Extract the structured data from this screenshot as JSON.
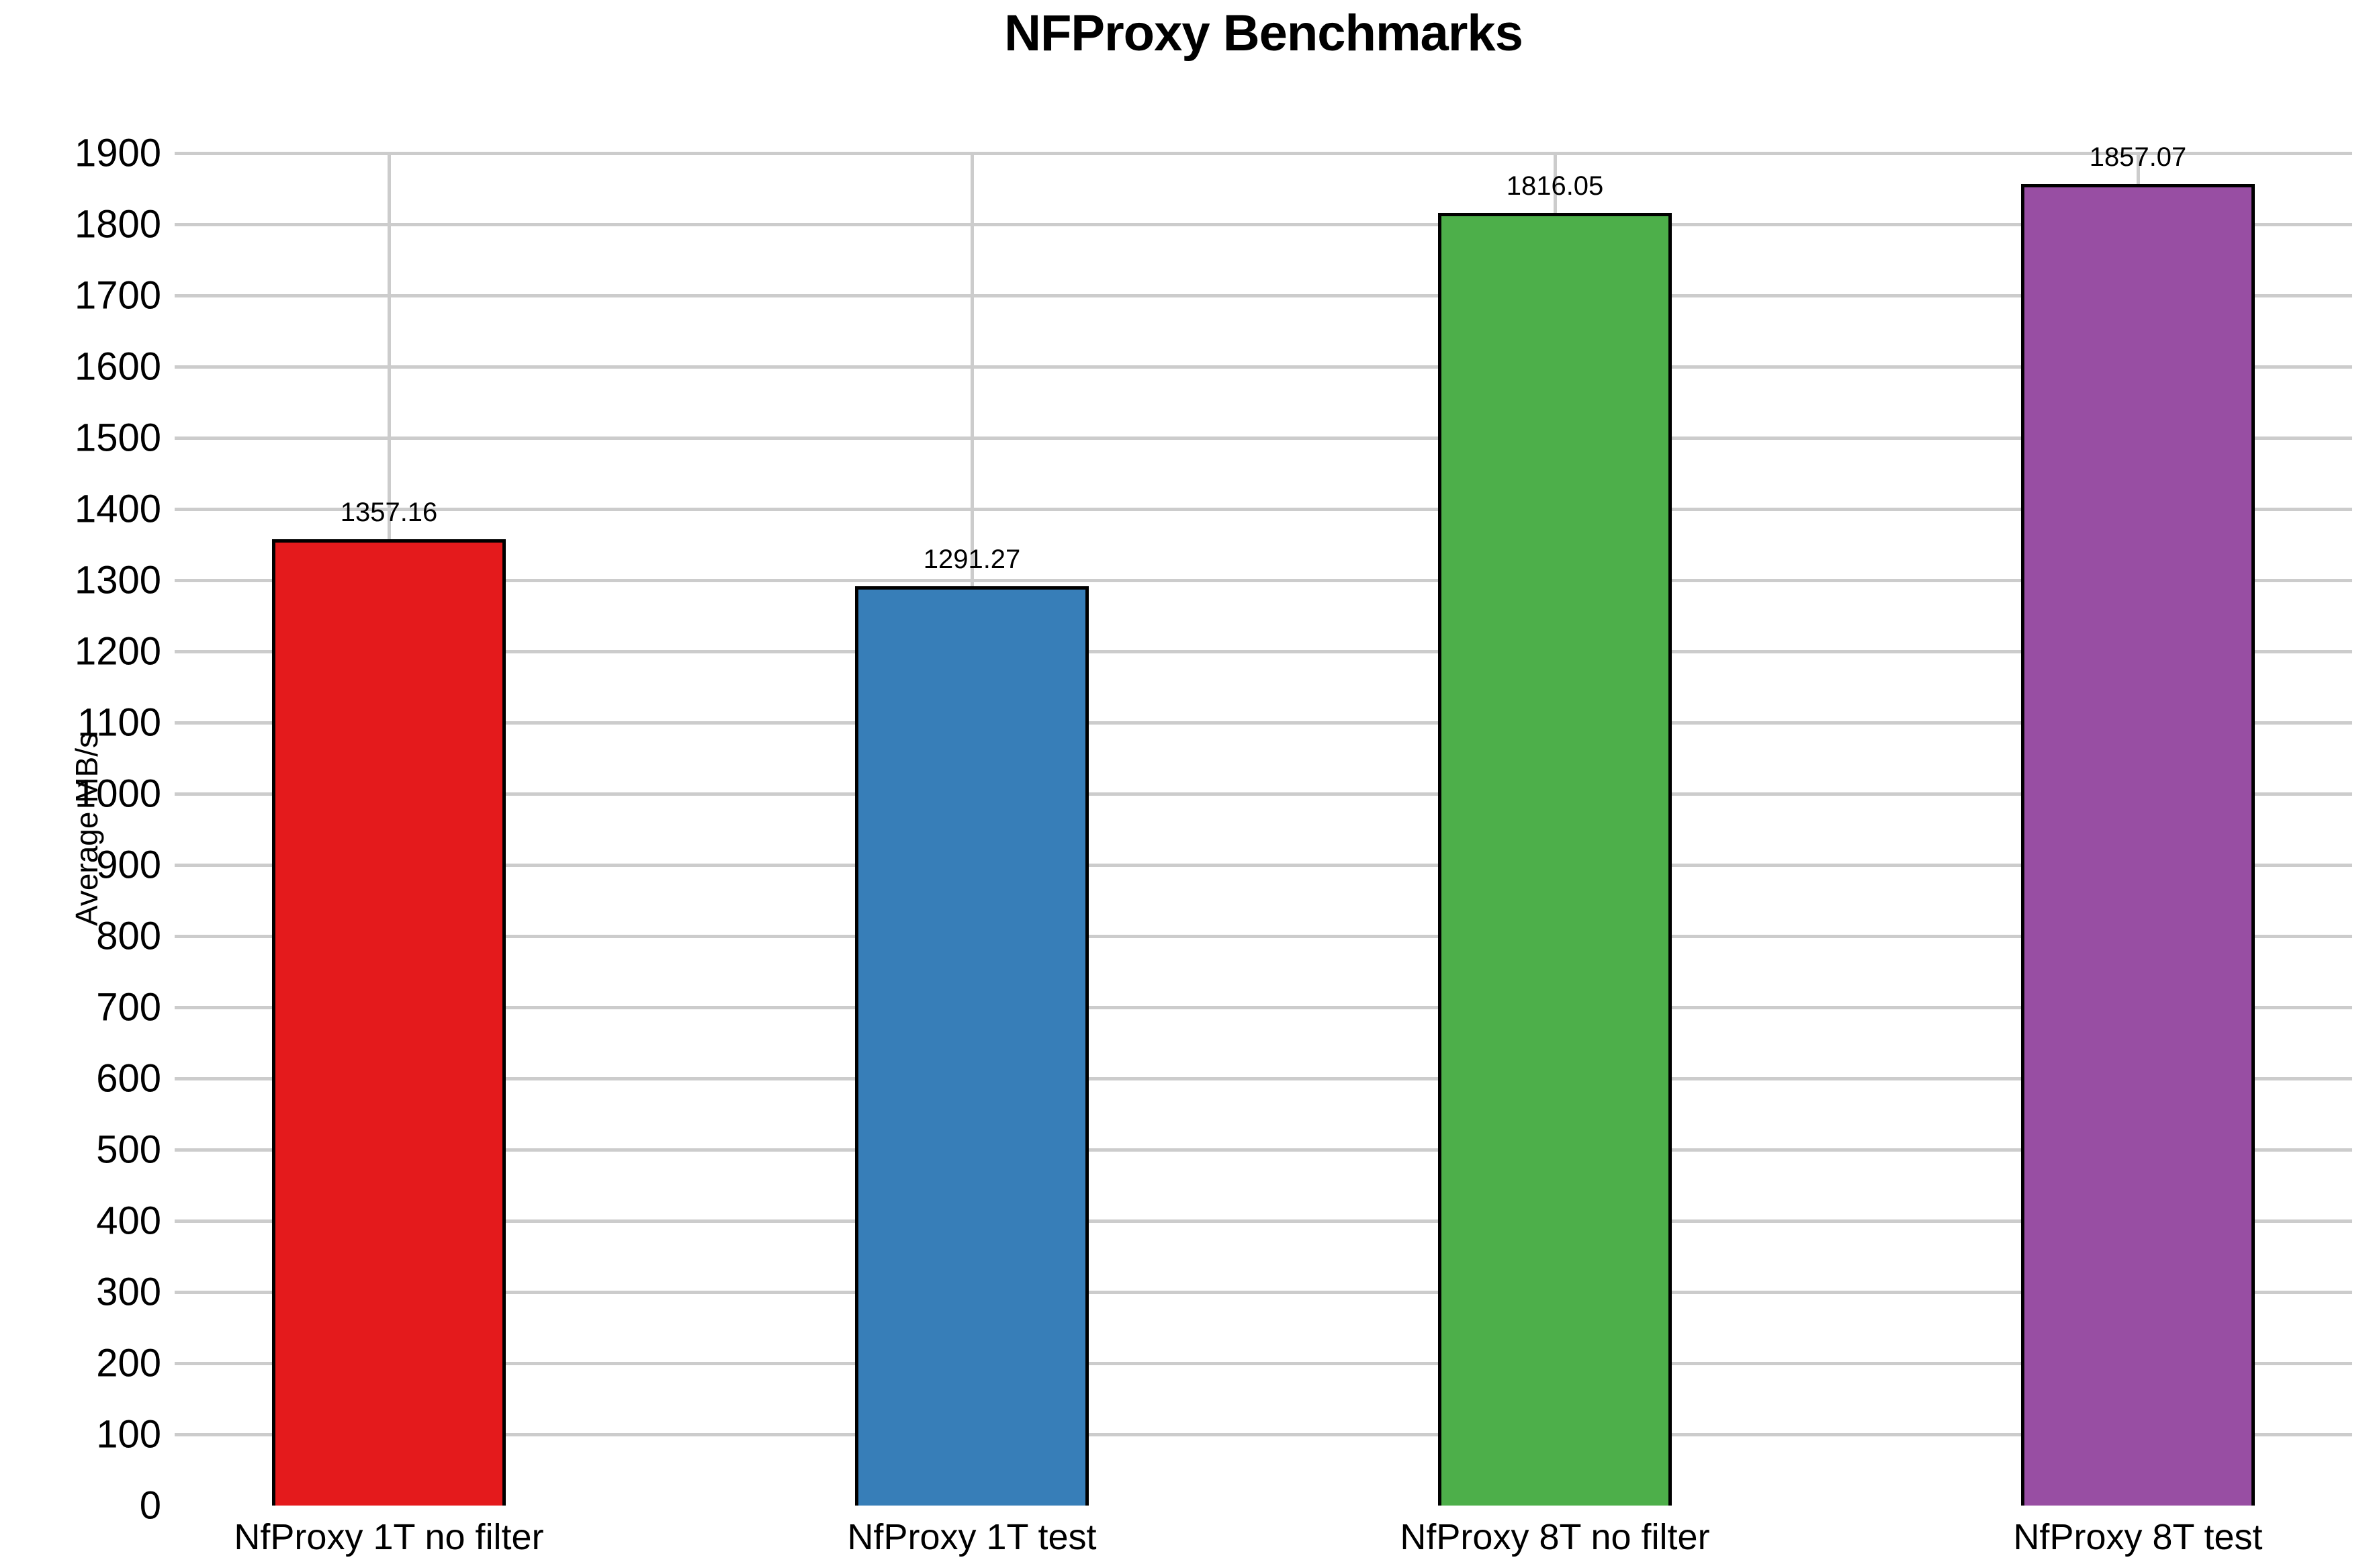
{
  "chart_data": {
    "type": "bar",
    "title": "NFProxy Benchmarks",
    "xlabel": "",
    "ylabel": "Average MB/s",
    "categories": [
      "NfProxy 1T no filter",
      "NfProxy 1T test",
      "NfProxy 8T no filter",
      "NfProxy 8T test"
    ],
    "values": [
      1357.16,
      1291.27,
      1816.05,
      1857.07
    ],
    "value_labels": [
      "1357.16",
      "1291.27",
      "1816.05",
      "1857.07"
    ],
    "bar_colors": [
      "#e41a1c",
      "#377eb8",
      "#4daf4a",
      "#984ea3"
    ],
    "bar_border_color": "#000000",
    "ylim": [
      0,
      1900
    ],
    "ytick_step": 100,
    "ytick_labels": [
      "0",
      "100",
      "200",
      "300",
      "400",
      "500",
      "600",
      "700",
      "800",
      "900",
      "1000",
      "1100",
      "1200",
      "1300",
      "1400",
      "1500",
      "1600",
      "1700",
      "1800",
      "1900"
    ],
    "grid": "on",
    "gridline_color": "#cccccc",
    "legend_position": "none",
    "text_color": "#000000",
    "background_color": "#ffffff"
  }
}
